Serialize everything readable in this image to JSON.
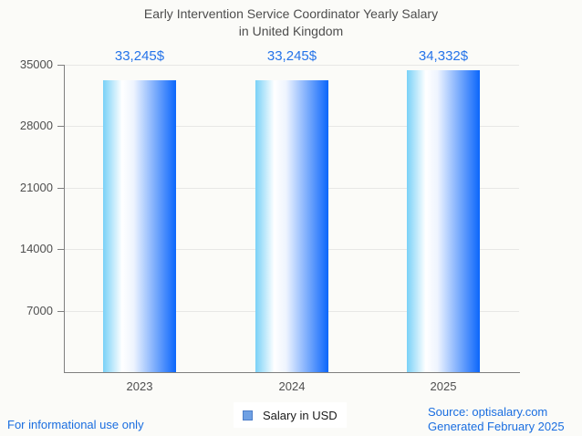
{
  "title": {
    "line1": "Early Intervention Service Coordinator Yearly Salary",
    "line2": "in United Kingdom"
  },
  "chart_data": {
    "type": "bar",
    "title": "Early Intervention Service Coordinator Yearly Salary in United Kingdom",
    "categories": [
      "2023",
      "2024",
      "2025"
    ],
    "values": [
      33245,
      33245,
      34332
    ],
    "value_labels": [
      "33,245$",
      "33,245$",
      "34,332$"
    ],
    "xlabel": "",
    "ylabel": "",
    "ylim": [
      0,
      35000
    ],
    "yticks": [
      7000,
      14000,
      21000,
      28000,
      35000
    ],
    "grid": true,
    "legend": {
      "label": "Salary in USD",
      "position": "bottom-center",
      "marker_fill": "#6fa0e3",
      "marker_border": "#4d7ec9"
    },
    "bar_gradient": [
      "#79d1f7",
      "#ffffff",
      "#0b66fb"
    ],
    "value_label_color": "#2473e9"
  },
  "footer": {
    "left_note": "For informational use only",
    "source_line1": "Source: optisalary.com",
    "source_line2": "Generated February 2025",
    "link_color": "#1a6ee0"
  }
}
